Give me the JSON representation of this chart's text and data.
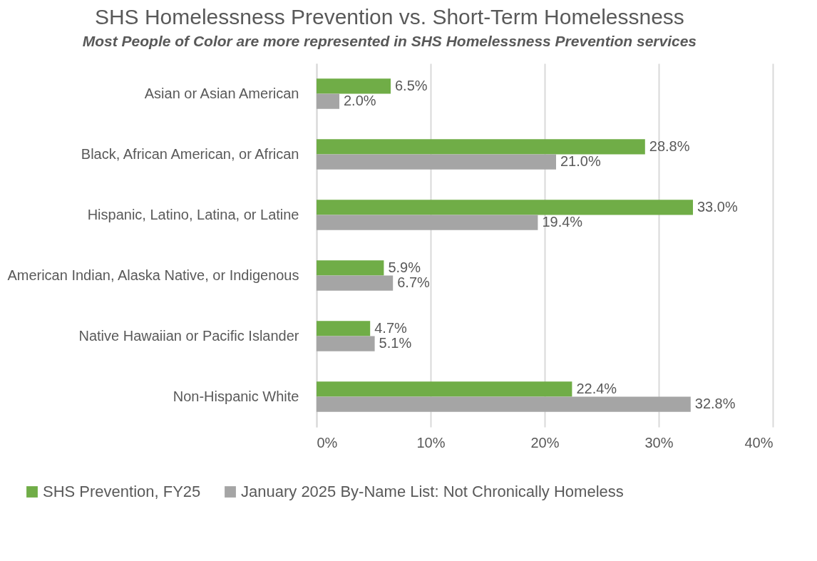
{
  "chart_data": {
    "type": "bar",
    "orientation": "horizontal",
    "title": "SHS Homelessness Prevention vs. Short-Term Homelessness",
    "subtitle": "Most People of Color are more represented in SHS Homelessness Prevention services",
    "categories": [
      "Asian or Asian American",
      "Black, African American, or African",
      "Hispanic, Latino, Latina, or Latine",
      "American Indian, Alaska Native, or Indigenous",
      "Native Hawaiian or Pacific Islander",
      "Non-Hispanic White"
    ],
    "series": [
      {
        "name": "SHS Prevention, FY25",
        "color": "#70ad47",
        "values": [
          6.5,
          28.8,
          33.0,
          5.9,
          4.7,
          22.4
        ],
        "value_labels": [
          "6.5%",
          "28.8%",
          "33.0%",
          "5.9%",
          "4.7%",
          "22.4%"
        ]
      },
      {
        "name": "January 2025 By-Name List: Not Chronically Homeless",
        "color": "#a5a5a5",
        "values": [
          2.0,
          21.0,
          19.4,
          6.7,
          5.1,
          32.8
        ],
        "value_labels": [
          "2.0%",
          "21.0%",
          "19.4%",
          "6.7%",
          "5.1%",
          "32.8%"
        ]
      }
    ],
    "xlim": [
      0,
      40
    ],
    "xticks": [
      {
        "value": 0,
        "label": "0%"
      },
      {
        "value": 10,
        "label": "10%"
      },
      {
        "value": 20,
        "label": "20%"
      },
      {
        "value": 30,
        "label": "30%"
      },
      {
        "value": 40,
        "label": "40%"
      }
    ],
    "grid": "x",
    "legend": "bottom"
  }
}
